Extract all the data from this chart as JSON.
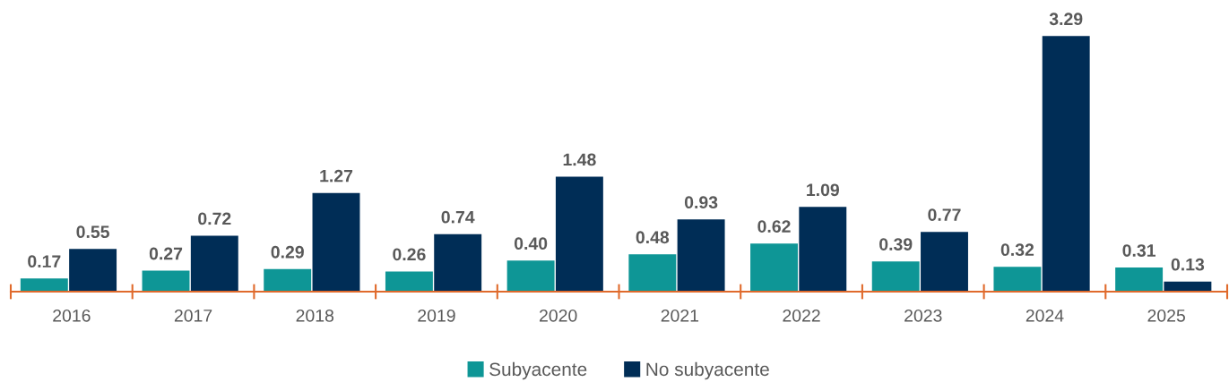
{
  "chart_data": {
    "type": "bar",
    "categories": [
      "2016",
      "2017",
      "2018",
      "2019",
      "2020",
      "2021",
      "2022",
      "2023",
      "2024",
      "2025"
    ],
    "series": [
      {
        "name": "Subyacente",
        "color": "#0e9696",
        "values": [
          0.17,
          0.27,
          0.29,
          0.26,
          0.4,
          0.48,
          0.62,
          0.39,
          0.32,
          0.31
        ],
        "value_labels": [
          "0.17",
          "0.27",
          "0.29",
          "0.26",
          "0.40",
          "0.48",
          "0.62",
          "0.39",
          "0.32",
          "0.31"
        ]
      },
      {
        "name": "No subyacente",
        "color": "#002d56",
        "values": [
          0.55,
          0.72,
          1.27,
          0.74,
          1.48,
          0.93,
          1.09,
          0.77,
          3.29,
          0.13
        ],
        "value_labels": [
          "0.55",
          "0.72",
          "1.27",
          "0.74",
          "1.48",
          "0.93",
          "1.09",
          "0.77",
          "3.29",
          "0.13"
        ]
      }
    ],
    "grid": false,
    "legend": "bottom"
  }
}
